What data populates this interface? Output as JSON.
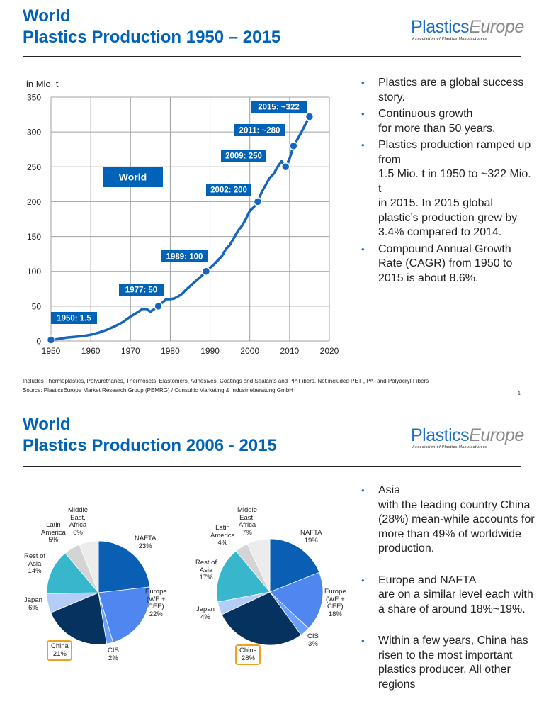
{
  "slide1": {
    "title_line1": "World",
    "title_line2": "Plastics Production 1950 – 2015",
    "logo": {
      "brand_part1": "Plastics",
      "brand_part2": "Europe",
      "tagline": "Association of Plastics Manufacturers"
    },
    "bullets": [
      "Plastics are a global success story.",
      "Continuous growth\nfor more than 50 years.",
      "Plastics production ramped up from\n1.5 Mio. t in 1950 to ~322 Mio. t\nin 2015. In 2015 global plastic’s production grew by 3.4% compared to 2014.",
      "Compound Annual Growth Rate (CAGR) from 1950 to 2015 is about 8.6%."
    ],
    "footnote1": "Includes Thermoplastics, Polyurethanes, Thermosets,  Elastomers, Adhesives, Coatings and Sealants and PP-Fibers. Not included PET-, PA- and Polyacryl-Fibers",
    "footnote2": "Source: PlasticsEurope Market Research Group (PEMRG) / Consultic Marketing & Industrieberatung GmbH",
    "page_number": "1"
  },
  "slide2": {
    "title_line1": "World",
    "title_line2": "Plastics Production 2006 - 2015",
    "logo": {
      "brand_part1": "Plastics",
      "brand_part2": "Europe",
      "tagline": "Association of Plastics Manufacturers"
    },
    "bullets": [
      "Asia\nwith the leading country China (28%) mean-while accounts for more than 49% of worldwide production.",
      "Europe and NAFTA\nare on a similar level each with a share of around 18%~19%.",
      "Within a few years, China has risen to the most important plastics producer. All other regions"
    ]
  },
  "colors": {
    "accent": "#0063b8",
    "line": "#1565c0",
    "highlight": "#f0a020"
  },
  "chart_data": [
    {
      "type": "line",
      "title": "World Plastics Production 1950 – 2015",
      "ylabel": "in Mio. t",
      "xlabel": "",
      "xlim": [
        1950,
        2020
      ],
      "ylim": [
        0,
        350
      ],
      "grid": true,
      "x_ticks": [
        1950,
        1960,
        1970,
        1980,
        1990,
        2000,
        2010,
        2020
      ],
      "y_ticks": [
        0,
        50,
        100,
        150,
        200,
        250,
        300,
        350
      ],
      "series_label": "World",
      "x": [
        1950,
        1952,
        1954,
        1956,
        1958,
        1960,
        1962,
        1964,
        1966,
        1968,
        1970,
        1972,
        1973,
        1974,
        1975,
        1976,
        1977,
        1978,
        1979,
        1980,
        1981,
        1982,
        1983,
        1984,
        1985,
        1986,
        1987,
        1988,
        1989,
        1990,
        1991,
        1992,
        1993,
        1994,
        1995,
        1996,
        1997,
        1998,
        1999,
        2000,
        2001,
        2002,
        2003,
        2004,
        2005,
        2006,
        2007,
        2008,
        2009,
        2010,
        2011,
        2012,
        2013,
        2014,
        2015
      ],
      "values": [
        1.5,
        3,
        5,
        6,
        7,
        9,
        12,
        16,
        21,
        27,
        35,
        42,
        46,
        46,
        42,
        46,
        50,
        55,
        60,
        60,
        61,
        64,
        68,
        74,
        79,
        84,
        89,
        94,
        100,
        105,
        110,
        116,
        122,
        132,
        138,
        148,
        158,
        165,
        175,
        187,
        192,
        200,
        214,
        224,
        234,
        240,
        250,
        258,
        250,
        262,
        280,
        290,
        300,
        311,
        322
      ],
      "annotations": [
        {
          "label": "1950: 1.5",
          "x": 1950,
          "y": 1.5
        },
        {
          "label": "1977: 50",
          "x": 1977,
          "y": 50
        },
        {
          "label": "1989: 100",
          "x": 1989,
          "y": 100
        },
        {
          "label": "2002: 200",
          "x": 2002,
          "y": 200
        },
        {
          "label": "2009: 250",
          "x": 2009,
          "y": 250
        },
        {
          "label": "2011: ~280",
          "x": 2011,
          "y": 280
        },
        {
          "label": "2015: ~322",
          "x": 2015,
          "y": 322
        }
      ]
    },
    {
      "type": "pie",
      "title": "2006",
      "slices": [
        {
          "label": "NAFTA",
          "value": 23,
          "color": "#0a5fb4"
        },
        {
          "label": "Europe\n(WE +\nCEE)",
          "value": 22,
          "color": "#4f86f0"
        },
        {
          "label": "CIS",
          "value": 2,
          "color": "#6aa0ff"
        },
        {
          "label": "China",
          "value": 21,
          "color": "#06325f",
          "highlight": true
        },
        {
          "label": "Japan",
          "value": 6,
          "color": "#b3cdf8"
        },
        {
          "label": "Rest of\nAsia",
          "value": 14,
          "color": "#38b6cc"
        },
        {
          "label": "Latin\nAmerica",
          "value": 5,
          "color": "#d4d4d4"
        },
        {
          "label": "Middle\nEast,\nAfrica",
          "value": 6,
          "color": "#ececec"
        }
      ]
    },
    {
      "type": "pie",
      "title": "2015",
      "slices": [
        {
          "label": "NAFTA",
          "value": 19,
          "color": "#0a5fb4"
        },
        {
          "label": "Europe\n(WE +\nCEE)",
          "value": 18,
          "color": "#4f86f0"
        },
        {
          "label": "CIS",
          "value": 3,
          "color": "#6aa0ff"
        },
        {
          "label": "China",
          "value": 28,
          "color": "#06325f",
          "highlight": true
        },
        {
          "label": "Japan",
          "value": 4,
          "color": "#b3cdf8"
        },
        {
          "label": "Rest of\nAsia",
          "value": 17,
          "color": "#38b6cc"
        },
        {
          "label": "Latin\nAmerica",
          "value": 4,
          "color": "#d4d4d4"
        },
        {
          "label": "Middle\nEast,\nAfrica",
          "value": 7,
          "color": "#ececec"
        }
      ]
    }
  ]
}
